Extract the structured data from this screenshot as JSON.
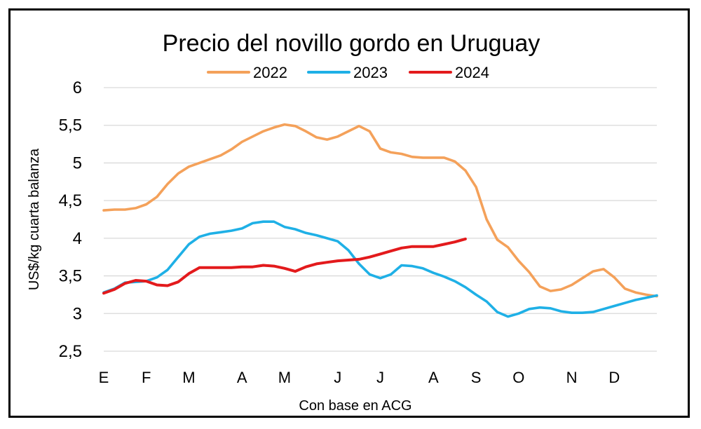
{
  "chart_data": {
    "type": "line",
    "title": "Precio del novillo gordo en Uruguay",
    "xlabel": "Con base en ACG",
    "ylabel": "US$/kg cuarta balanza",
    "ylim": [
      2.5,
      6
    ],
    "yticks": [
      "2,5",
      "3",
      "3,5",
      "4",
      "4,5",
      "5",
      "5,5",
      "6"
    ],
    "ytick_values": [
      2.5,
      3,
      3.5,
      4,
      4.5,
      5,
      5.5,
      6
    ],
    "grid": true,
    "legend_position": "top-center",
    "x_range": [
      0,
      52
    ],
    "x_month_labels": [
      {
        "label": "E",
        "week": 0
      },
      {
        "label": "F",
        "week": 4
      },
      {
        "label": "M",
        "week": 8
      },
      {
        "label": "A",
        "week": 13
      },
      {
        "label": "M",
        "week": 17
      },
      {
        "label": "J",
        "week": 22
      },
      {
        "label": "J",
        "week": 26
      },
      {
        "label": "A",
        "week": 31
      },
      {
        "label": "S",
        "week": 35
      },
      {
        "label": "O",
        "week": 39
      },
      {
        "label": "N",
        "week": 44
      },
      {
        "label": "D",
        "week": 48
      }
    ],
    "series": [
      {
        "name": "2022",
        "color": "#F4A15A",
        "x": [
          0,
          1,
          2,
          3,
          4,
          5,
          6,
          7,
          8,
          9,
          10,
          11,
          12,
          13,
          14,
          15,
          16,
          17,
          18,
          19,
          20,
          21,
          22,
          23,
          24,
          25,
          26,
          27,
          28,
          29,
          30,
          31,
          32,
          33,
          34,
          35,
          36,
          37,
          38,
          39,
          40,
          41,
          42,
          43,
          44,
          45,
          46,
          47,
          48,
          49,
          50,
          51,
          52
        ],
        "values": [
          4.37,
          4.38,
          4.38,
          4.4,
          4.45,
          4.55,
          4.72,
          4.86,
          4.95,
          5.0,
          5.05,
          5.1,
          5.18,
          5.28,
          5.35,
          5.42,
          5.47,
          5.51,
          5.49,
          5.42,
          5.34,
          5.31,
          5.35,
          5.42,
          5.49,
          5.42,
          5.19,
          5.14,
          5.12,
          5.08,
          5.07,
          5.07,
          5.07,
          5.02,
          4.9,
          4.68,
          4.25,
          3.98,
          3.88,
          3.7,
          3.55,
          3.36,
          3.3,
          3.32,
          3.38,
          3.47,
          3.56,
          3.59,
          3.48,
          3.33,
          3.28,
          3.25,
          3.23
        ]
      },
      {
        "name": "2023",
        "color": "#1FB0E6",
        "x": [
          0,
          1,
          2,
          3,
          4,
          5,
          6,
          7,
          8,
          9,
          10,
          11,
          12,
          13,
          14,
          15,
          16,
          17,
          18,
          19,
          20,
          21,
          22,
          23,
          24,
          25,
          26,
          27,
          28,
          29,
          30,
          31,
          32,
          33,
          34,
          35,
          36,
          37,
          38,
          39,
          40,
          41,
          42,
          43,
          44,
          45,
          46,
          47,
          48,
          49,
          50,
          51,
          52
        ],
        "values": [
          3.28,
          3.33,
          3.41,
          3.42,
          3.43,
          3.48,
          3.58,
          3.75,
          3.92,
          4.02,
          4.06,
          4.08,
          4.1,
          4.13,
          4.2,
          4.22,
          4.22,
          4.15,
          4.12,
          4.07,
          4.04,
          4.0,
          3.96,
          3.84,
          3.66,
          3.52,
          3.47,
          3.52,
          3.64,
          3.63,
          3.6,
          3.54,
          3.49,
          3.43,
          3.35,
          3.25,
          3.16,
          3.02,
          2.96,
          3.0,
          3.06,
          3.08,
          3.07,
          3.03,
          3.01,
          3.01,
          3.02,
          3.06,
          3.1,
          3.14,
          3.18,
          3.21,
          3.24
        ]
      },
      {
        "name": "2024",
        "color": "#E31A1C",
        "x": [
          0,
          1,
          2,
          3,
          4,
          5,
          6,
          7,
          8,
          9,
          10,
          11,
          12,
          13,
          14,
          15,
          16,
          17,
          18,
          19,
          20,
          21,
          22,
          23,
          24,
          25,
          26,
          27,
          28,
          29,
          30,
          31,
          32,
          33,
          34
        ],
        "values": [
          3.27,
          3.32,
          3.4,
          3.44,
          3.43,
          3.38,
          3.37,
          3.42,
          3.53,
          3.61,
          3.61,
          3.61,
          3.61,
          3.62,
          3.62,
          3.64,
          3.63,
          3.6,
          3.56,
          3.62,
          3.66,
          3.68,
          3.7,
          3.71,
          3.72,
          3.75,
          3.79,
          3.83,
          3.87,
          3.89,
          3.89,
          3.89,
          3.92,
          3.95,
          3.99
        ]
      }
    ]
  }
}
